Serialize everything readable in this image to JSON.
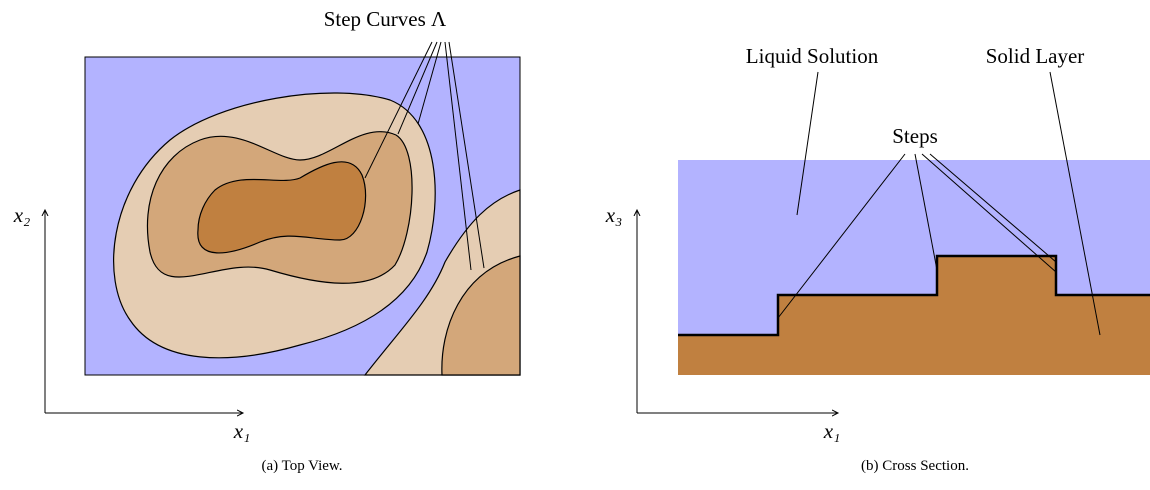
{
  "panels": [
    {
      "annotation": "Step Curves Λ",
      "axis_y": "x₂",
      "axis_x": "x₁",
      "caption": "(a) Top View."
    },
    {
      "annotations": [
        "Liquid Solution",
        "Solid Layer",
        "Steps"
      ],
      "axis_y": "x₃",
      "axis_x": "x₁",
      "caption": "(b) Cross Section."
    }
  ]
}
